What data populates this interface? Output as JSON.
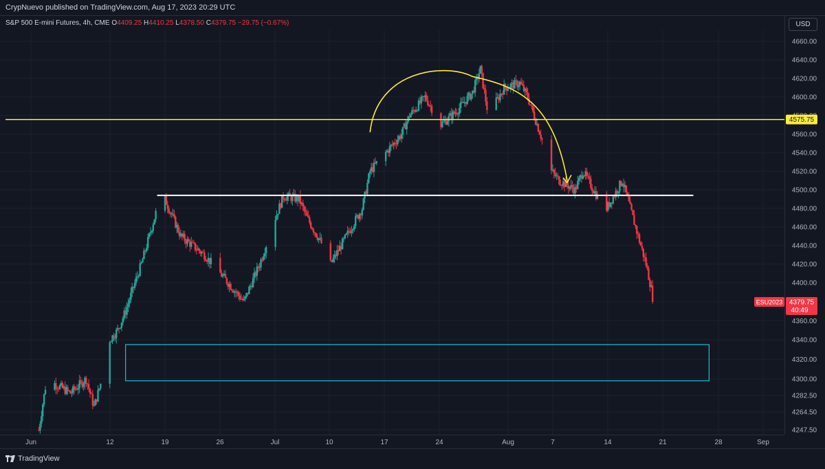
{
  "header": {
    "published": "CrypNuevo published on TradingView.com, Aug 17, 2023 20:29 UTC"
  },
  "legend": {
    "symbol": "S&P 500 E-mini Futures, 4h, CME",
    "o_label": "O",
    "o_value": "4409.25",
    "h_label": "H",
    "h_value": "4410.25",
    "l_label": "L",
    "l_value": "4378.50",
    "c_label": "C",
    "c_value": "4379.75",
    "change": "−29.75 (−0.67%)"
  },
  "currency": "USD",
  "footer": {
    "brand": "TradingView"
  },
  "colors": {
    "background": "#131722",
    "up": "#26a69a",
    "down": "#f23645",
    "resistance": "#ffeb3b",
    "support": "#ffffff",
    "zone": "#22bcd6",
    "arc": "#ffeb3b"
  },
  "chart_data": {
    "type": "candlestick",
    "title": "",
    "ylim": [
      4240,
      4670
    ],
    "y_ticks": [
      "4660.00",
      "4640.00",
      "4620.00",
      "4600.00",
      "4580.00",
      "4560.00",
      "4540.00",
      "4520.00",
      "4500.00",
      "4480.00",
      "4460.00",
      "4440.00",
      "4420.00",
      "4400.00",
      "4380.00",
      "4360.00",
      "4340.00",
      "4320.00",
      "4300.00",
      "4282.50",
      "4264.50",
      "4247.50"
    ],
    "x_ticks": [
      "Jun",
      "12",
      "19",
      "26",
      "Jul",
      "10",
      "17",
      "24",
      "Aug",
      "7",
      "14",
      "21",
      "28",
      "Sep"
    ],
    "x_range": [
      "2023-06-01",
      "2023-09-01"
    ],
    "price_labels": [
      {
        "name": "horizontal-line-label",
        "value": 4575.75,
        "text": "4575.75"
      },
      {
        "name": "last-price-label",
        "symbol": "ESU2023",
        "text": "4379.75",
        "countdown": "40:49",
        "value": 4379.75
      }
    ],
    "drawings": {
      "resistance_line": 4575.75,
      "support_line": {
        "value": 4494,
        "start": "2023-06-17",
        "end": "2023-08-24"
      },
      "demand_zone": {
        "top": 4335,
        "bottom": 4298,
        "start": "2023-06-13",
        "end": "2023-08-26"
      },
      "arc": {
        "start": "2023-07-14",
        "peak": "2023-07-27",
        "end": "2023-08-08",
        "base": 4562,
        "top": 4622
      }
    },
    "series": [
      {
        "type": "candles",
        "path": [
          [
            "2023-06-02",
            4247
          ],
          [
            "2023-06-03",
            4300
          ],
          [
            "2023-06-06",
            4285
          ],
          [
            "2023-06-08",
            4300
          ],
          [
            "2023-06-09",
            4270
          ],
          [
            "2023-06-10",
            4300
          ],
          [
            "2023-06-11",
            4340
          ],
          [
            "2023-06-12",
            4350
          ],
          [
            "2023-06-13",
            4370
          ],
          [
            "2023-06-15",
            4420
          ],
          [
            "2023-06-17",
            4480
          ],
          [
            "2023-06-18",
            4490
          ],
          [
            "2023-06-20",
            4450
          ],
          [
            "2023-06-23",
            4430
          ],
          [
            "2023-06-26",
            4400
          ],
          [
            "2023-06-28",
            4380
          ],
          [
            "2023-06-30",
            4420
          ],
          [
            "2023-07-02",
            4470
          ],
          [
            "2023-07-03",
            4493
          ],
          [
            "2023-07-05",
            4490
          ],
          [
            "2023-07-06",
            4470
          ],
          [
            "2023-07-08",
            4440
          ],
          [
            "2023-07-09",
            4420
          ],
          [
            "2023-07-11",
            4450
          ],
          [
            "2023-07-13",
            4480
          ],
          [
            "2023-07-14",
            4520
          ],
          [
            "2023-07-16",
            4540
          ],
          [
            "2023-07-18",
            4560
          ],
          [
            "2023-07-19",
            4580
          ],
          [
            "2023-07-21",
            4600
          ],
          [
            "2023-07-23",
            4570
          ],
          [
            "2023-07-25",
            4585
          ],
          [
            "2023-07-27",
            4605
          ],
          [
            "2023-07-28",
            4630
          ],
          [
            "2023-07-29",
            4580
          ],
          [
            "2023-07-31",
            4610
          ],
          [
            "2023-08-02",
            4615
          ],
          [
            "2023-08-03",
            4600
          ],
          [
            "2023-08-05",
            4550
          ],
          [
            "2023-08-06",
            4520
          ],
          [
            "2023-08-07",
            4510
          ],
          [
            "2023-08-09",
            4500
          ],
          [
            "2023-08-10",
            4520
          ],
          [
            "2023-08-12",
            4490
          ],
          [
            "2023-08-13",
            4480
          ],
          [
            "2023-08-15",
            4510
          ],
          [
            "2023-08-16",
            4480
          ],
          [
            "2023-08-17",
            4450
          ],
          [
            "2023-08-18",
            4420
          ],
          [
            "2023-08-19",
            4380
          ]
        ]
      }
    ]
  }
}
